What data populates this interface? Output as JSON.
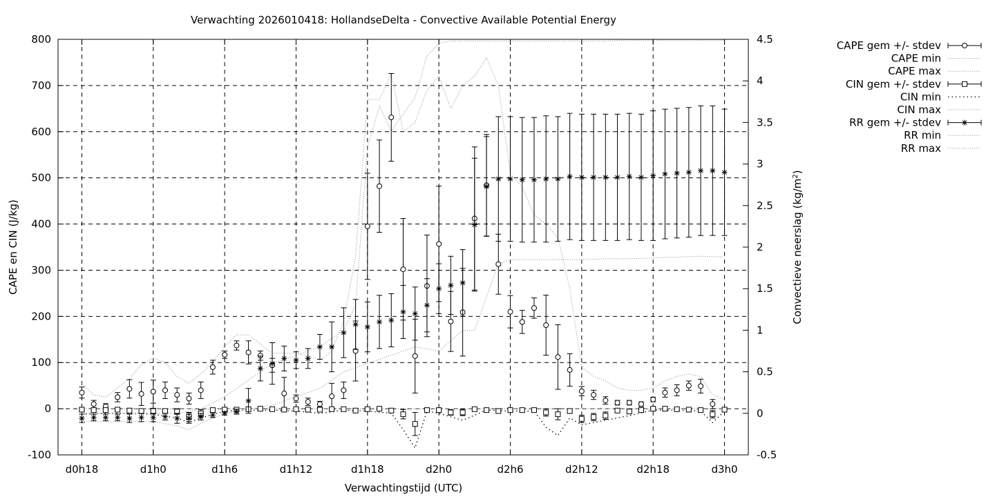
{
  "chart_data": {
    "type": "line",
    "title": "Verwachting 2026010418: HollandseDelta - Convective Available Potential Energy",
    "xlabel": "Verwachtingstijd (UTC)",
    "ylabel": "CAPE en CIN (J/kg)",
    "y2label": {
      "main": "Convectieve neerslag (kg/m",
      "sup": "2",
      "end": ")"
    },
    "ylim": [
      -100,
      800
    ],
    "y2lim": [
      -0.5,
      4.5
    ],
    "xlim": [
      -2,
      56
    ],
    "x_ticks": [
      {
        "x": 0,
        "label": "d0h18"
      },
      {
        "x": 6,
        "label": "d1h0"
      },
      {
        "x": 12,
        "label": "d1h6"
      },
      {
        "x": 18,
        "label": "d1h12"
      },
      {
        "x": 24,
        "label": "d1h18"
      },
      {
        "x": 30,
        "label": "d2h0"
      },
      {
        "x": 36,
        "label": "d2h6"
      },
      {
        "x": 42,
        "label": "d2h12"
      },
      {
        "x": 48,
        "label": "d2h18"
      },
      {
        "x": 54,
        "label": "d3h0"
      }
    ],
    "y_ticks": [
      {
        "v": -100,
        "label": "-100"
      },
      {
        "v": 0,
        "label": "0"
      },
      {
        "v": 100,
        "label": "100"
      },
      {
        "v": 200,
        "label": "200"
      },
      {
        "v": 300,
        "label": "300"
      },
      {
        "v": 400,
        "label": "400"
      },
      {
        "v": 500,
        "label": "500"
      },
      {
        "v": 600,
        "label": "600"
      },
      {
        "v": 700,
        "label": "700"
      },
      {
        "v": 800,
        "label": "800"
      }
    ],
    "y2_ticks": [
      {
        "v": -0.5,
        "label": "-0.5"
      },
      {
        "v": 0,
        "label": "0"
      },
      {
        "v": 0.5,
        "label": "0.5"
      },
      {
        "v": 1,
        "label": "1"
      },
      {
        "v": 1.5,
        "label": "1.5"
      },
      {
        "v": 2,
        "label": "2"
      },
      {
        "v": 2.5,
        "label": "2.5"
      },
      {
        "v": 3,
        "label": "3"
      },
      {
        "v": 3.5,
        "label": "3.5"
      },
      {
        "v": 4,
        "label": "4"
      },
      {
        "v": 4.5,
        "label": "4.5"
      }
    ],
    "grid": true,
    "legend_position": "outside-top-right",
    "legend": [
      {
        "label": "CAPE gem +/- stdev",
        "style": "errorbar-circle"
      },
      {
        "label": "CAPE min",
        "style": "dotted"
      },
      {
        "label": "CAPE max",
        "style": "dotted"
      },
      {
        "label": "CIN gem +/- stdev",
        "style": "errorbar-square"
      },
      {
        "label": "CIN min",
        "style": "dotted-sparse"
      },
      {
        "label": "CIN max",
        "style": "dotted"
      },
      {
        "label": "RR gem +/- stdev",
        "style": "errorbar-star"
      },
      {
        "label": "RR min",
        "style": "dotted"
      },
      {
        "label": "RR max",
        "style": "dotted"
      }
    ],
    "series": [
      {
        "name": "CAPE gem +/- stdev",
        "axis": "y",
        "marker": "circle",
        "x": [
          0,
          1,
          2,
          3,
          4,
          5,
          6,
          7,
          8,
          9,
          10,
          11,
          12,
          13,
          14,
          15,
          16,
          17,
          18,
          19,
          20,
          21,
          22,
          23,
          24,
          25,
          26,
          27,
          28,
          29,
          30,
          31,
          32,
          33,
          34,
          35,
          36,
          37,
          38,
          39,
          40,
          41,
          42,
          43,
          44,
          45,
          46,
          47,
          48,
          49,
          50,
          51,
          52,
          53
        ],
        "y": [
          35,
          10,
          5,
          25,
          43,
          32,
          37,
          40,
          30,
          22,
          40,
          90,
          117,
          137,
          122,
          115,
          94,
          33,
          22,
          15,
          10,
          27,
          40,
          125,
          395,
          482,
          631,
          302,
          114,
          266,
          357,
          189,
          209,
          412,
          484,
          313,
          210,
          188,
          218,
          181,
          112,
          84,
          38,
          30,
          18,
          13,
          13,
          10,
          20,
          35,
          40,
          50,
          49,
          10
        ],
        "err": [
          12,
          8,
          6,
          10,
          20,
          25,
          25,
          18,
          15,
          12,
          18,
          15,
          8,
          10,
          25,
          10,
          15,
          35,
          8,
          8,
          6,
          28,
          18,
          65,
          115,
          100,
          95,
          110,
          80,
          110,
          125,
          65,
          95,
          155,
          110,
          65,
          35,
          25,
          22,
          65,
          70,
          35,
          10,
          10,
          8,
          5,
          5,
          5,
          5,
          10,
          12,
          10,
          15,
          10
        ]
      },
      {
        "name": "CAPE min",
        "axis": "y",
        "x": [
          0,
          2,
          4,
          6,
          8,
          10,
          12,
          14,
          16,
          18,
          20,
          22,
          24,
          26,
          28,
          30,
          32,
          34,
          36,
          38,
          40,
          42,
          44,
          46,
          48,
          50,
          52,
          54
        ],
        "y": [
          0,
          0,
          0,
          0,
          0,
          0,
          0,
          0,
          0,
          0,
          0,
          0,
          0,
          0,
          0,
          0,
          0,
          0,
          0,
          0,
          0,
          0,
          0,
          0,
          0,
          0,
          0,
          0
        ]
      },
      {
        "name": "CAPE max",
        "axis": "y",
        "x": [
          0,
          1,
          2,
          3,
          4,
          5,
          6,
          7,
          8,
          9,
          10,
          11,
          12,
          13,
          14,
          15,
          16,
          17,
          18,
          19,
          20,
          21,
          22,
          23,
          24,
          25,
          26,
          27,
          28,
          29,
          30,
          31,
          32,
          33,
          34,
          35,
          36,
          37,
          38,
          39,
          40,
          41,
          42,
          43,
          44,
          45,
          46,
          47,
          48,
          49,
          50,
          51,
          52,
          53,
          54
        ],
        "y": [
          55,
          30,
          25,
          45,
          65,
          95,
          110,
          100,
          70,
          55,
          75,
          100,
          135,
          160,
          160,
          140,
          120,
          120,
          120,
          115,
          105,
          125,
          190,
          330,
          670,
          670,
          725,
          600,
          620,
          690,
          720,
          650,
          700,
          720,
          760,
          700,
          510,
          480,
          420,
          400,
          370,
          260,
          90,
          70,
          60,
          45,
          40,
          40,
          45,
          60,
          70,
          75,
          70,
          30,
          20
        ]
      },
      {
        "name": "CIN gem +/- stdev",
        "axis": "y",
        "marker": "square",
        "x": [
          0,
          1,
          2,
          3,
          4,
          5,
          6,
          7,
          8,
          9,
          10,
          11,
          12,
          13,
          14,
          15,
          16,
          17,
          18,
          19,
          20,
          21,
          22,
          23,
          24,
          25,
          26,
          27,
          28,
          29,
          30,
          31,
          32,
          33,
          34,
          35,
          36,
          37,
          38,
          39,
          40,
          41,
          42,
          43,
          44,
          45,
          46,
          47,
          48,
          49,
          50,
          51,
          52,
          53,
          54
        ],
        "y": [
          -2,
          -3,
          -3,
          -2,
          -4,
          -5,
          -5,
          -5,
          -6,
          -18,
          -10,
          -3,
          -2,
          -2,
          -1,
          0,
          -1,
          -2,
          -1,
          -2,
          -2,
          -1,
          -1,
          -4,
          -1,
          0,
          -4,
          -12,
          -33,
          -3,
          -3,
          -8,
          -8,
          -1,
          -3,
          -5,
          -3,
          -3,
          -3,
          -8,
          -12,
          -5,
          -22,
          -18,
          -15,
          -4,
          -6,
          -3,
          0,
          0,
          -1,
          -2,
          -3,
          -12,
          -2
        ],
        "err": [
          3,
          4,
          4,
          3,
          4,
          5,
          6,
          5,
          6,
          10,
          8,
          3,
          2,
          2,
          2,
          1,
          2,
          2,
          2,
          2,
          2,
          2,
          2,
          3,
          2,
          2,
          4,
          10,
          25,
          3,
          3,
          6,
          7,
          2,
          3,
          4,
          3,
          3,
          3,
          8,
          12,
          5,
          8,
          8,
          8,
          4,
          5,
          3,
          2,
          2,
          2,
          2,
          3,
          8,
          2
        ]
      },
      {
        "name": "CIN min",
        "axis": "y",
        "x": [
          0,
          2,
          4,
          6,
          8,
          9,
          10,
          12,
          14,
          16,
          18,
          20,
          22,
          24,
          26,
          27,
          28,
          29,
          30,
          32,
          34,
          36,
          38,
          39,
          40,
          41,
          42,
          43,
          44,
          46,
          48,
          50,
          52,
          53,
          54
        ],
        "y": [
          -12,
          -10,
          -10,
          -12,
          -20,
          -30,
          -20,
          -5,
          -3,
          -3,
          -5,
          -10,
          -3,
          -5,
          -10,
          -45,
          -85,
          -5,
          -10,
          -25,
          -3,
          -5,
          -5,
          -40,
          -58,
          -20,
          -35,
          -30,
          -25,
          -15,
          -3,
          -3,
          -5,
          -30,
          -5
        ]
      },
      {
        "name": "CIN max",
        "axis": "y",
        "x": [
          0,
          4,
          8,
          12,
          16,
          20,
          24,
          28,
          32,
          36,
          40,
          44,
          48,
          52,
          54
        ],
        "y": [
          0,
          0,
          0,
          0,
          0,
          0,
          0,
          0,
          0,
          0,
          0,
          0,
          0,
          0,
          0
        ]
      },
      {
        "name": "RR gem +/- stdev",
        "axis": "y2",
        "marker": "star",
        "x": [
          0,
          1,
          2,
          3,
          4,
          5,
          6,
          7,
          8,
          9,
          10,
          11,
          12,
          13,
          14,
          15,
          16,
          17,
          18,
          19,
          20,
          21,
          22,
          23,
          24,
          25,
          26,
          27,
          28,
          29,
          30,
          31,
          32,
          33,
          34,
          35,
          36,
          37,
          38,
          39,
          40,
          41,
          42,
          43,
          44,
          45,
          46,
          47,
          48,
          49,
          50,
          51,
          52,
          53,
          54
        ],
        "y": [
          -0.06,
          -0.05,
          -0.05,
          -0.05,
          -0.06,
          -0.05,
          -0.05,
          -0.04,
          -0.06,
          -0.06,
          -0.04,
          -0.02,
          0.0,
          0.02,
          0.15,
          0.54,
          0.6,
          0.66,
          0.64,
          0.66,
          0.8,
          0.8,
          0.97,
          1.07,
          1.04,
          1.1,
          1.12,
          1.22,
          1.2,
          1.3,
          1.5,
          1.54,
          1.57,
          2.27,
          2.73,
          2.82,
          2.82,
          2.81,
          2.81,
          2.82,
          2.82,
          2.85,
          2.84,
          2.84,
          2.84,
          2.84,
          2.85,
          2.84,
          2.86,
          2.88,
          2.89,
          2.9,
          2.92,
          2.92,
          2.9
        ],
        "err": [
          0.05,
          0.04,
          0.04,
          0.04,
          0.05,
          0.05,
          0.05,
          0.04,
          0.06,
          0.06,
          0.04,
          0.03,
          0.02,
          0.03,
          0.15,
          0.15,
          0.25,
          0.15,
          0.1,
          0.12,
          0.15,
          0.3,
          0.3,
          0.3,
          0.3,
          0.32,
          0.32,
          0.32,
          0.32,
          0.32,
          0.3,
          0.35,
          0.4,
          0.8,
          0.6,
          0.75,
          0.75,
          0.75,
          0.75,
          0.76,
          0.75,
          0.76,
          0.76,
          0.76,
          0.76,
          0.76,
          0.76,
          0.76,
          0.78,
          0.78,
          0.78,
          0.78,
          0.78,
          0.78,
          0.76
        ]
      },
      {
        "name": "RR min",
        "axis": "y2",
        "x": [
          0,
          2,
          4,
          6,
          8,
          9,
          10,
          12,
          14,
          16,
          18,
          20,
          22,
          24,
          26,
          28,
          30,
          32,
          33,
          34,
          35,
          36,
          38,
          40,
          42,
          44,
          46,
          48,
          50,
          52,
          54
        ],
        "y": [
          -0.1,
          -0.1,
          -0.1,
          -0.1,
          -0.15,
          -0.2,
          -0.12,
          0.0,
          0.05,
          0.1,
          0.2,
          0.3,
          0.5,
          0.6,
          0.7,
          0.8,
          0.75,
          1.0,
          1.0,
          1.4,
          1.8,
          1.85,
          1.85,
          1.85,
          1.85,
          1.86,
          1.86,
          1.87,
          1.88,
          1.89,
          1.88
        ]
      },
      {
        "name": "RR max",
        "axis": "y2",
        "x": [
          0,
          2,
          4,
          6,
          8,
          10,
          12,
          14,
          16,
          18,
          20,
          22,
          23,
          24,
          25,
          26,
          27,
          28,
          29,
          30,
          31,
          32,
          33,
          34,
          35,
          36,
          38,
          40,
          42,
          44,
          46,
          48,
          50,
          52,
          54
        ],
        "y": [
          0.0,
          0.0,
          0.0,
          0.0,
          0.0,
          0.05,
          0.2,
          0.4,
          0.6,
          0.7,
          0.8,
          1.0,
          1.3,
          3.2,
          3.7,
          3.4,
          3.6,
          3.8,
          4.3,
          4.45,
          4.48,
          4.48,
          4.48,
          4.48,
          4.48,
          4.48,
          4.48,
          4.48,
          4.48,
          4.48,
          4.49,
          4.49,
          4.49,
          4.49,
          4.49
        ]
      }
    ]
  }
}
